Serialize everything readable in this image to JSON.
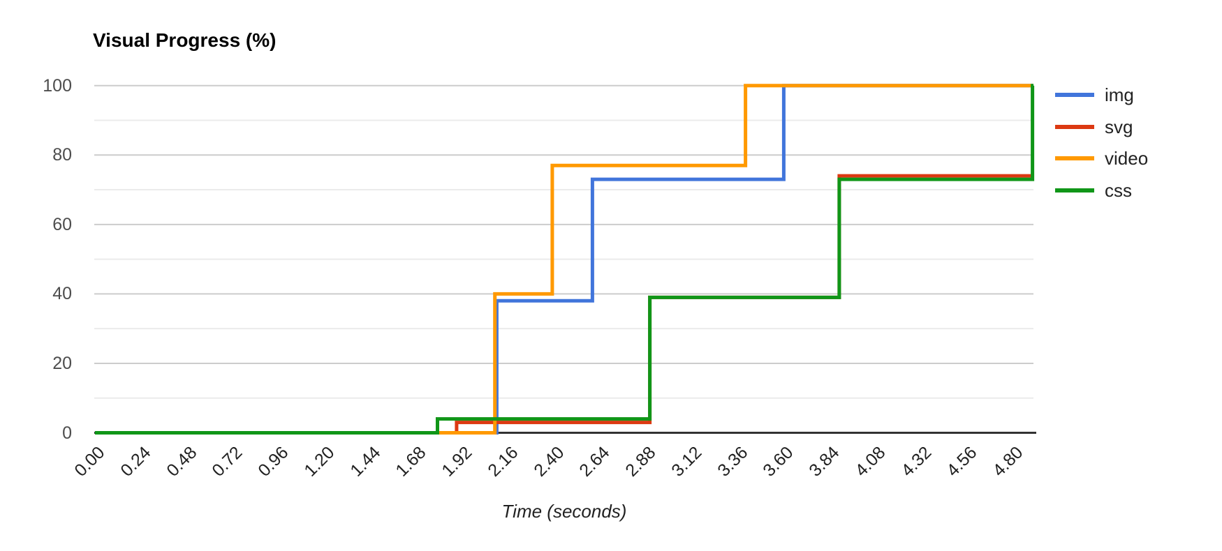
{
  "title": "Visual Progress (%)",
  "chart_data": {
    "type": "line",
    "step_style": "step-after",
    "title": "Visual Progress (%)",
    "xlabel": "Time (seconds)",
    "ylabel": "Visual Progress (%)",
    "xlim": [
      0,
      4.905
    ],
    "ylim": [
      0,
      100
    ],
    "grid": true,
    "legend_position": "right",
    "x_tick_labels": [
      "0.00",
      "0.24",
      "0.48",
      "0.72",
      "0.96",
      "1.20",
      "1.44",
      "1.68",
      "1.92",
      "2.16",
      "2.40",
      "2.64",
      "2.88",
      "3.12",
      "3.36",
      "3.60",
      "3.84",
      "4.08",
      "4.32",
      "4.56",
      "4.80"
    ],
    "y_tick_labels": [
      "0",
      "20",
      "40",
      "60",
      "80",
      "100"
    ],
    "y_ticks": [
      0,
      20,
      40,
      60,
      80,
      100
    ],
    "y_minor_ticks": [
      10,
      30,
      50,
      70,
      90
    ],
    "series": [
      {
        "name": "img",
        "color": "#4175DB",
        "points": [
          [
            0,
            0
          ],
          [
            2.1,
            38
          ],
          [
            2.6,
            73
          ],
          [
            3.6,
            100
          ]
        ]
      },
      {
        "name": "svg",
        "color": "#DC3912",
        "points": [
          [
            0,
            0
          ],
          [
            1.89,
            3
          ],
          [
            2.9,
            39
          ],
          [
            3.89,
            74
          ]
        ]
      },
      {
        "name": "video",
        "color": "#FF9900",
        "points": [
          [
            0,
            0
          ],
          [
            2.09,
            40
          ],
          [
            2.39,
            77
          ],
          [
            3.4,
            100
          ]
        ]
      },
      {
        "name": "css",
        "color": "#109618",
        "points": [
          [
            0,
            0
          ],
          [
            1.79,
            4
          ],
          [
            2.9,
            39
          ],
          [
            3.89,
            73
          ],
          [
            4.9,
            100
          ]
        ]
      }
    ],
    "colors": {
      "grid_major": "#cccccc",
      "grid_minor": "#ebebeb",
      "baseline": "#333333"
    }
  }
}
